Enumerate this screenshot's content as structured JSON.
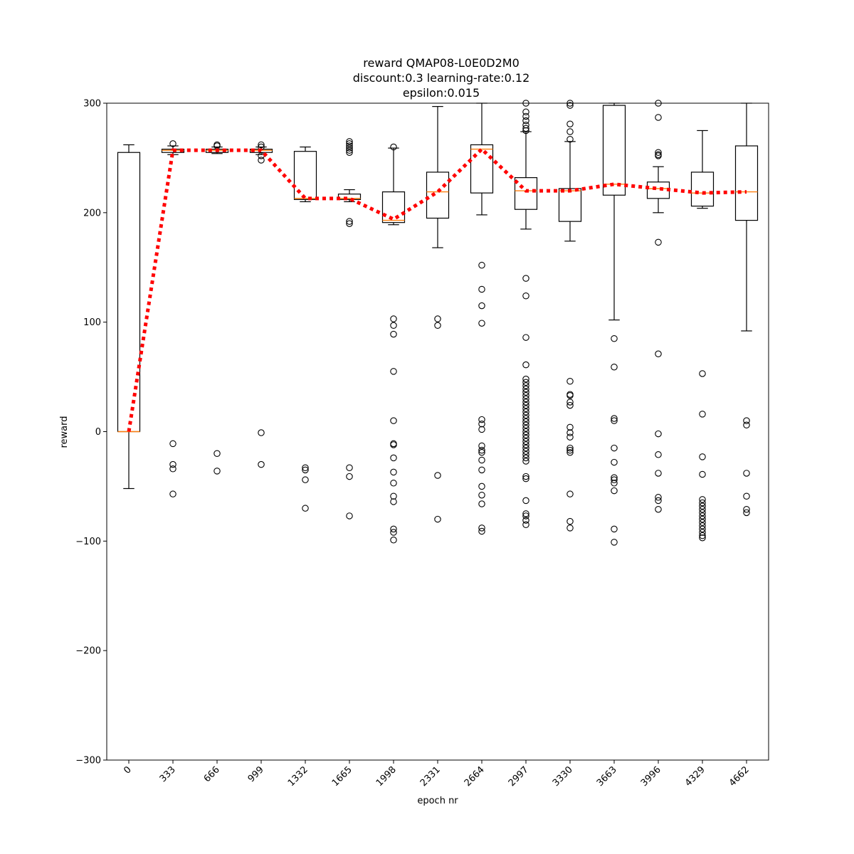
{
  "chart_data": {
    "type": "box",
    "title_lines": [
      "reward QMAP08-L0E0D2M0",
      "discount:0.3 learning-rate:0.12",
      "epsilon:0.015"
    ],
    "xlabel": "epoch nr",
    "ylabel": "reward",
    "ylim": [
      -300,
      300
    ],
    "yticks": [
      -300,
      -200,
      -100,
      0,
      100,
      200,
      300
    ],
    "categories": [
      "0",
      "333",
      "666",
      "999",
      "1332",
      "1665",
      "1998",
      "2331",
      "2664",
      "2997",
      "3330",
      "3663",
      "3996",
      "4329",
      "4662"
    ],
    "colors": {
      "box": "#000000",
      "median": "#ff7f0e",
      "mean_line": "#ff0000",
      "background": "#ffffff"
    },
    "boxes": [
      {
        "x": "0",
        "q1": 0,
        "median": 0,
        "q3": 255,
        "whislo": -52,
        "whishi": 262,
        "fliers": []
      },
      {
        "x": "333",
        "q1": 255,
        "median": 257,
        "q3": 258,
        "whislo": 253,
        "whishi": 261,
        "fliers": [
          263,
          -11,
          -30,
          -34,
          -57
        ]
      },
      {
        "x": "666",
        "q1": 255,
        "median": 257,
        "q3": 258,
        "whislo": 254,
        "whishi": 260,
        "fliers": [
          262,
          261,
          -20,
          -36
        ]
      },
      {
        "x": "999",
        "q1": 255,
        "median": 257,
        "q3": 258,
        "whislo": 253,
        "whishi": 260,
        "fliers": [
          262,
          260,
          252,
          248,
          -1,
          -30
        ]
      },
      {
        "x": "1332",
        "q1": 212,
        "median": 213,
        "q3": 256,
        "whislo": 210,
        "whishi": 260,
        "fliers": [
          -33,
          -35,
          -44,
          -70
        ]
      },
      {
        "x": "1665",
        "q1": 212,
        "median": 213,
        "q3": 217,
        "whislo": 210,
        "whishi": 221,
        "fliers": [
          265,
          263,
          261,
          259,
          257,
          255,
          192,
          190,
          -33,
          -41,
          -77
        ]
      },
      {
        "x": "1998",
        "q1": 191,
        "median": 193,
        "q3": 219,
        "whislo": 189,
        "whishi": 259,
        "fliers": [
          260,
          103,
          97,
          89,
          55,
          10,
          -11,
          -12,
          -24,
          -37,
          -47,
          -59,
          -64,
          -89,
          -92,
          -99
        ]
      },
      {
        "x": "2331",
        "q1": 195,
        "median": 219,
        "q3": 237,
        "whislo": 168,
        "whishi": 297,
        "fliers": [
          103,
          97,
          -40,
          -80
        ]
      },
      {
        "x": "2664",
        "q1": 218,
        "median": 258,
        "q3": 262,
        "whislo": 198,
        "whishi": 300,
        "fliers": [
          152,
          130,
          115,
          99,
          11,
          7,
          2,
          -13,
          -17,
          -19,
          -26,
          -35,
          -50,
          -58,
          -66,
          -88,
          -91
        ]
      },
      {
        "x": "2997",
        "q1": 203,
        "median": 220,
        "q3": 232,
        "whislo": 185,
        "whishi": 274,
        "fliers": [
          300,
          292,
          288,
          284,
          280,
          277,
          275,
          140,
          124,
          86,
          61,
          48,
          45,
          42,
          39,
          36,
          33,
          30,
          27,
          24,
          21,
          18,
          15,
          12,
          9,
          6,
          3,
          0,
          -3,
          -6,
          -9,
          -12,
          -15,
          -18,
          -21,
          -24,
          -27,
          -41,
          -43,
          -63,
          -75,
          -77,
          -81,
          -85
        ]
      },
      {
        "x": "3330",
        "q1": 192,
        "median": 220,
        "q3": 222,
        "whislo": 174,
        "whishi": 265,
        "fliers": [
          300,
          298,
          281,
          274,
          267,
          46,
          34,
          33,
          27,
          24,
          4,
          -1,
          -5,
          -15,
          -17,
          -19,
          -57,
          -82,
          -88
        ]
      },
      {
        "x": "3663",
        "q1": 216,
        "median": 226,
        "q3": 298,
        "whislo": 102,
        "whishi": 300,
        "fliers": [
          85,
          59,
          12,
          10,
          -15,
          -28,
          -42,
          -44,
          -47,
          -54,
          -89,
          -101
        ]
      },
      {
        "x": "3996",
        "q1": 213,
        "median": 222,
        "q3": 228,
        "whislo": 200,
        "whishi": 242,
        "fliers": [
          300,
          287,
          255,
          253,
          252,
          173,
          71,
          -2,
          -21,
          -38,
          -60,
          -63,
          -71
        ]
      },
      {
        "x": "4329",
        "q1": 206,
        "median": 218,
        "q3": 237,
        "whislo": 204,
        "whishi": 275,
        "fliers": [
          53,
          16,
          -23,
          -39,
          -62,
          -65,
          -68,
          -71,
          -74,
          -77,
          -80,
          -83,
          -86,
          -89,
          -92,
          -95,
          -97
        ]
      },
      {
        "x": "4662",
        "q1": 193,
        "median": 219,
        "q3": 261,
        "whislo": 92,
        "whishi": 300,
        "fliers": [
          10,
          6,
          -38,
          -59,
          -71,
          -74
        ]
      }
    ],
    "mean_line": {
      "style": "dotted",
      "values": [
        0,
        257,
        257,
        257,
        213,
        213,
        194,
        219,
        258,
        220,
        220,
        226,
        222,
        218,
        219
      ]
    },
    "grid": false,
    "legend": "none"
  }
}
